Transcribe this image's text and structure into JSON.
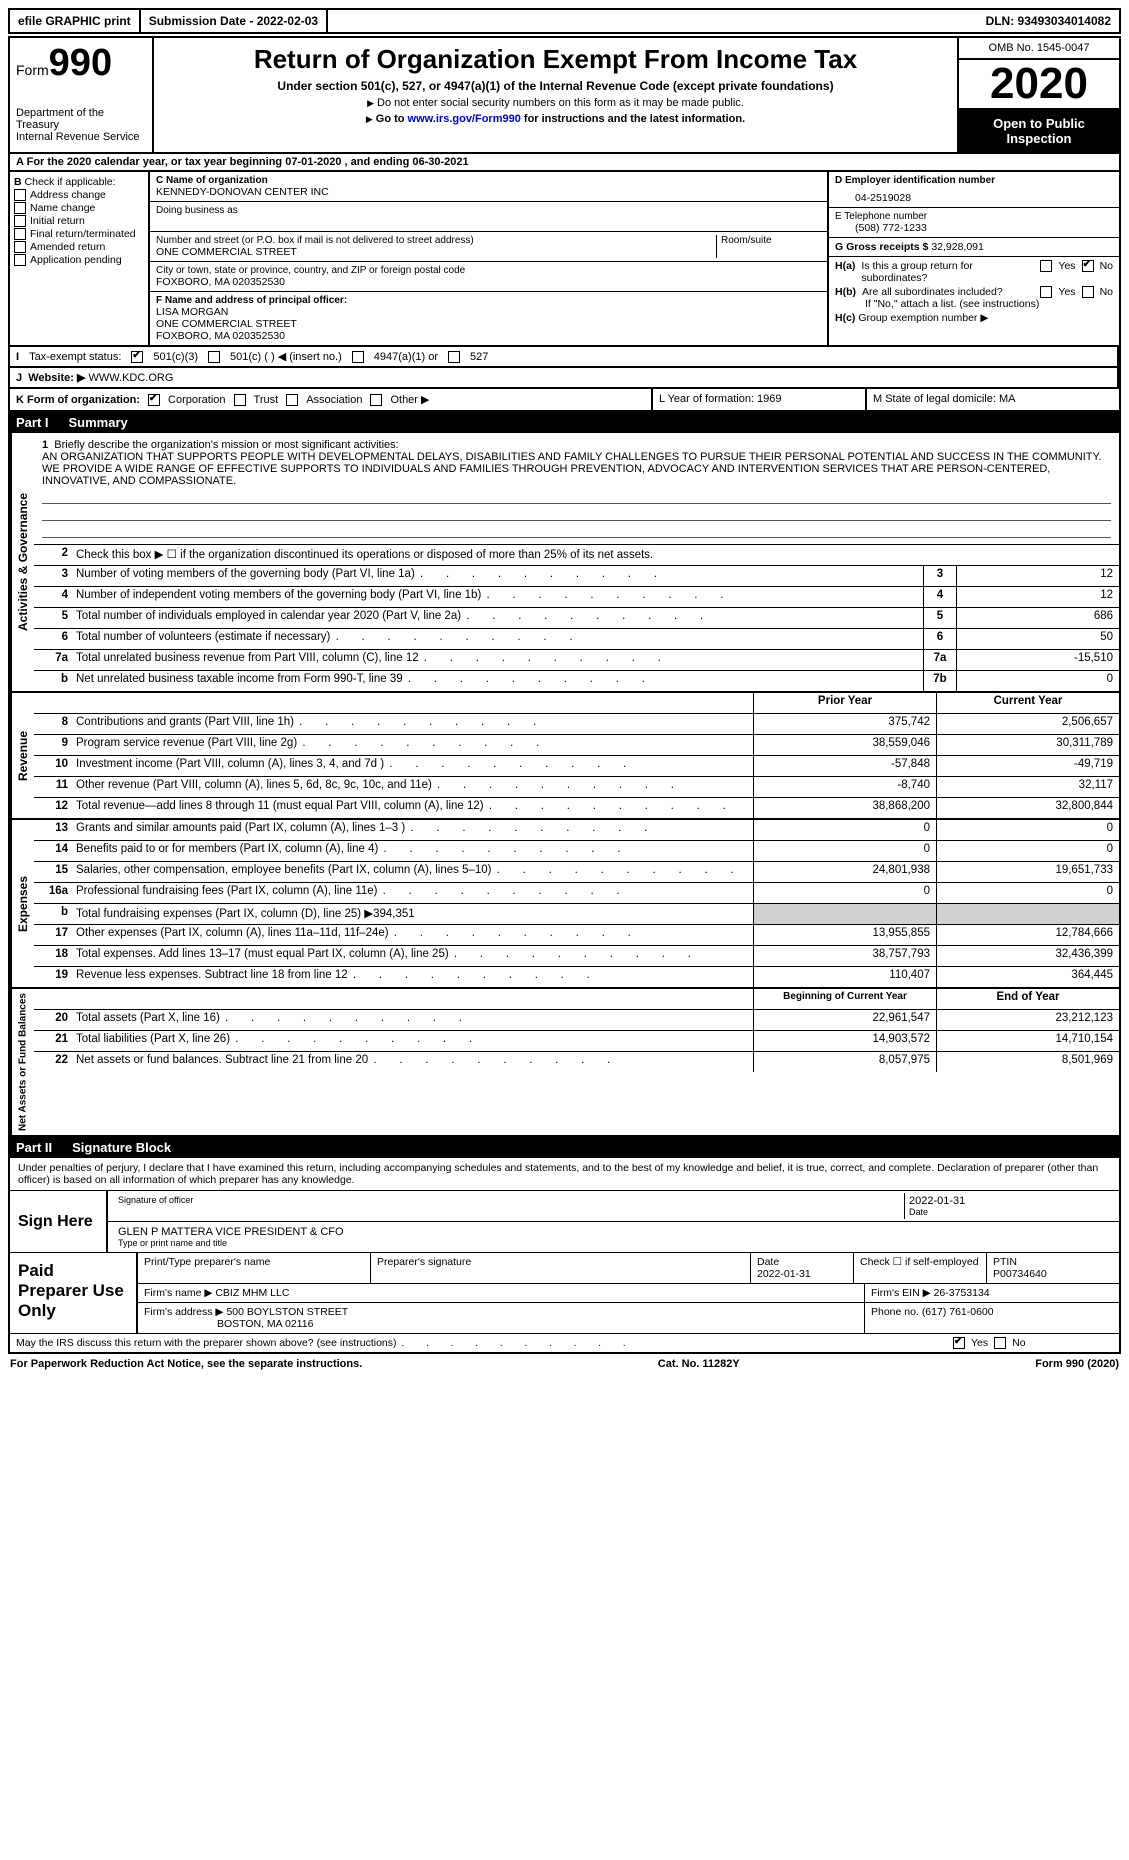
{
  "top": {
    "efile": "efile GRAPHIC print",
    "submission": "Submission Date - 2022-02-03",
    "dln": "DLN: 93493034014082"
  },
  "header": {
    "form_label": "Form",
    "form_num": "990",
    "dept": "Department of the Treasury\nInternal Revenue Service",
    "title": "Return of Organization Exempt From Income Tax",
    "sub": "Under section 501(c), 527, or 4947(a)(1) of the Internal Revenue Code (except private foundations)",
    "note1": "Do not enter social security numbers on this form as it may be made public.",
    "note2_a": "Go to ",
    "note2_link": "www.irs.gov/Form990",
    "note2_b": " for instructions and the latest information.",
    "omb": "OMB No. 1545-0047",
    "year": "2020",
    "open": "Open to Public Inspection"
  },
  "lineA": "For the 2020 calendar year, or tax year beginning 07-01-2020   , and ending 06-30-2021",
  "boxB": {
    "label": "Check if applicable:",
    "items": [
      "Address change",
      "Name change",
      "Initial return",
      "Final return/terminated",
      "Amended return",
      "Application pending"
    ]
  },
  "boxC": {
    "label": "C Name of organization",
    "name": "KENNEDY-DONOVAN CENTER INC",
    "dba_label": "Doing business as",
    "addr_label": "Number and street (or P.O. box if mail is not delivered to street address)",
    "room_label": "Room/suite",
    "addr": "ONE COMMERCIAL STREET",
    "city_label": "City or town, state or province, country, and ZIP or foreign postal code",
    "city": "FOXBORO, MA   020352530"
  },
  "boxD": {
    "label": "D Employer identification number",
    "value": "04-2519028"
  },
  "boxE": {
    "label": "E Telephone number",
    "value": "(508) 772-1233"
  },
  "boxG": {
    "label": "G Gross receipts $",
    "value": "32,928,091"
  },
  "boxF": {
    "label": "F  Name and address of principal officer:",
    "name": "LISA MORGAN",
    "addr1": "ONE COMMERCIAL STREET",
    "addr2": "FOXBORO, MA   020352530"
  },
  "boxH": {
    "ha": "Is this a group return for subordinates?",
    "hb": "Are all subordinates included?",
    "hb_note": "If \"No,\" attach a list. (see instructions)",
    "hc": "Group exemption number ▶",
    "ha_label": "H(a)",
    "hb_label": "H(b)",
    "hc_label": "H(c)",
    "yes": "Yes",
    "no": "No"
  },
  "lineI": {
    "label": "Tax-exempt status:",
    "o1": "501(c)(3)",
    "o2": "501(c) (   ) ◀ (insert no.)",
    "o3": "4947(a)(1) or",
    "o4": "527"
  },
  "lineJ": {
    "label": "Website: ▶",
    "value": "WWW.KDC.ORG"
  },
  "lineK": {
    "label": "K Form of organization:",
    "o1": "Corporation",
    "o2": "Trust",
    "o3": "Association",
    "o4": "Other ▶",
    "L": "L Year of formation: 1969",
    "M": "M State of legal domicile: MA"
  },
  "part1": {
    "label": "Part I",
    "title": "Summary"
  },
  "mission": {
    "num": "1",
    "label": "Briefly describe the organization's mission or most significant activities:",
    "text": "AN ORGANIZATION THAT SUPPORTS PEOPLE WITH DEVELOPMENTAL DELAYS, DISABILITIES AND FAMILY CHALLENGES TO PURSUE THEIR PERSONAL POTENTIAL AND SUCCESS IN THE COMMUNITY. WE PROVIDE A WIDE RANGE OF EFFECTIVE SUPPORTS TO INDIVIDUALS AND FAMILIES THROUGH PREVENTION, ADVOCACY AND INTERVENTION SERVICES THAT ARE PERSON-CENTERED, INNOVATIVE, AND COMPASSIONATE."
  },
  "gov": {
    "l2": "Check this box ▶ ☐  if the organization discontinued its operations or disposed of more than 25% of its net assets.",
    "rows": [
      {
        "n": "3",
        "t": "Number of voting members of the governing body (Part VI, line 1a)",
        "b": "3",
        "v": "12"
      },
      {
        "n": "4",
        "t": "Number of independent voting members of the governing body (Part VI, line 1b)",
        "b": "4",
        "v": "12"
      },
      {
        "n": "5",
        "t": "Total number of individuals employed in calendar year 2020 (Part V, line 2a)",
        "b": "5",
        "v": "686"
      },
      {
        "n": "6",
        "t": "Total number of volunteers (estimate if necessary)",
        "b": "6",
        "v": "50"
      },
      {
        "n": "7a",
        "t": "Total unrelated business revenue from Part VIII, column (C), line 12",
        "b": "7a",
        "v": "-15,510"
      },
      {
        "n": "b",
        "t": "Net unrelated business taxable income from Form 990-T, line 39",
        "b": "7b",
        "v": "0"
      }
    ]
  },
  "rev": {
    "hdr_prior": "Prior Year",
    "hdr_curr": "Current Year",
    "rows": [
      {
        "n": "8",
        "t": "Contributions and grants (Part VIII, line 1h)",
        "p": "375,742",
        "c": "2,506,657"
      },
      {
        "n": "9",
        "t": "Program service revenue (Part VIII, line 2g)",
        "p": "38,559,046",
        "c": "30,311,789"
      },
      {
        "n": "10",
        "t": "Investment income (Part VIII, column (A), lines 3, 4, and 7d )",
        "p": "-57,848",
        "c": "-49,719"
      },
      {
        "n": "11",
        "t": "Other revenue (Part VIII, column (A), lines 5, 6d, 8c, 9c, 10c, and 11e)",
        "p": "-8,740",
        "c": "32,117"
      },
      {
        "n": "12",
        "t": "Total revenue—add lines 8 through 11 (must equal Part VIII, column (A), line 12)",
        "p": "38,868,200",
        "c": "32,800,844"
      }
    ]
  },
  "exp": {
    "rows": [
      {
        "n": "13",
        "t": "Grants and similar amounts paid (Part IX, column (A), lines 1–3 )",
        "p": "0",
        "c": "0"
      },
      {
        "n": "14",
        "t": "Benefits paid to or for members (Part IX, column (A), line 4)",
        "p": "0",
        "c": "0"
      },
      {
        "n": "15",
        "t": "Salaries, other compensation, employee benefits (Part IX, column (A), lines 5–10)",
        "p": "24,801,938",
        "c": "19,651,733"
      },
      {
        "n": "16a",
        "t": "Professional fundraising fees (Part IX, column (A), line 11e)",
        "p": "0",
        "c": "0"
      },
      {
        "n": "b",
        "t": "Total fundraising expenses (Part IX, column (D), line 25) ▶394,351",
        "p": "",
        "c": "",
        "shaded": true
      },
      {
        "n": "17",
        "t": "Other expenses (Part IX, column (A), lines 11a–11d, 11f–24e)",
        "p": "13,955,855",
        "c": "12,784,666"
      },
      {
        "n": "18",
        "t": "Total expenses. Add lines 13–17 (must equal Part IX, column (A), line 25)",
        "p": "38,757,793",
        "c": "32,436,399"
      },
      {
        "n": "19",
        "t": "Revenue less expenses. Subtract line 18 from line 12",
        "p": "110,407",
        "c": "364,445"
      }
    ]
  },
  "net": {
    "hdr_beg": "Beginning of Current Year",
    "hdr_end": "End of Year",
    "rows": [
      {
        "n": "20",
        "t": "Total assets (Part X, line 16)",
        "p": "22,961,547",
        "c": "23,212,123"
      },
      {
        "n": "21",
        "t": "Total liabilities (Part X, line 26)",
        "p": "14,903,572",
        "c": "14,710,154"
      },
      {
        "n": "22",
        "t": "Net assets or fund balances. Subtract line 21 from line 20",
        "p": "8,057,975",
        "c": "8,501,969"
      }
    ]
  },
  "part2": {
    "label": "Part II",
    "title": "Signature Block"
  },
  "sig": {
    "penalty": "Under penalties of perjury, I declare that I have examined this return, including accompanying schedules and statements, and to the best of my knowledge and belief, it is true, correct, and complete. Declaration of preparer (other than officer) is based on all information of which preparer has any knowledge.",
    "sign_here": "Sign Here",
    "sig_officer": "Signature of officer",
    "date": "Date",
    "date_val": "2022-01-31",
    "officer_name": "GLEN P MATTERA  VICE PRESIDENT & CFO",
    "type_name": "Type or print name and title"
  },
  "prep": {
    "label": "Paid Preparer Use Only",
    "h1": "Print/Type preparer's name",
    "h2": "Preparer's signature",
    "h3": "Date",
    "h3v": "2022-01-31",
    "h4": "Check ☐ if self-employed",
    "h5": "PTIN",
    "h5v": "P00734640",
    "firm_name_l": "Firm's name    ▶",
    "firm_name": "CBIZ MHM LLC",
    "firm_ein_l": "Firm's EIN ▶",
    "firm_ein": "26-3753134",
    "firm_addr_l": "Firm's address ▶",
    "firm_addr1": "500 BOYLSTON STREET",
    "firm_addr2": "BOSTON, MA  02116",
    "phone_l": "Phone no.",
    "phone": "(617) 761-0600"
  },
  "discuss": {
    "text": "May the IRS discuss this return with the preparer shown above? (see instructions)",
    "yes": "Yes",
    "no": "No"
  },
  "footer": {
    "left": "For Paperwork Reduction Act Notice, see the separate instructions.",
    "mid": "Cat. No. 11282Y",
    "right": "Form 990 (2020)"
  },
  "sides": {
    "gov": "Activities & Governance",
    "rev": "Revenue",
    "exp": "Expenses",
    "net": "Net Assets or Fund Balances"
  }
}
